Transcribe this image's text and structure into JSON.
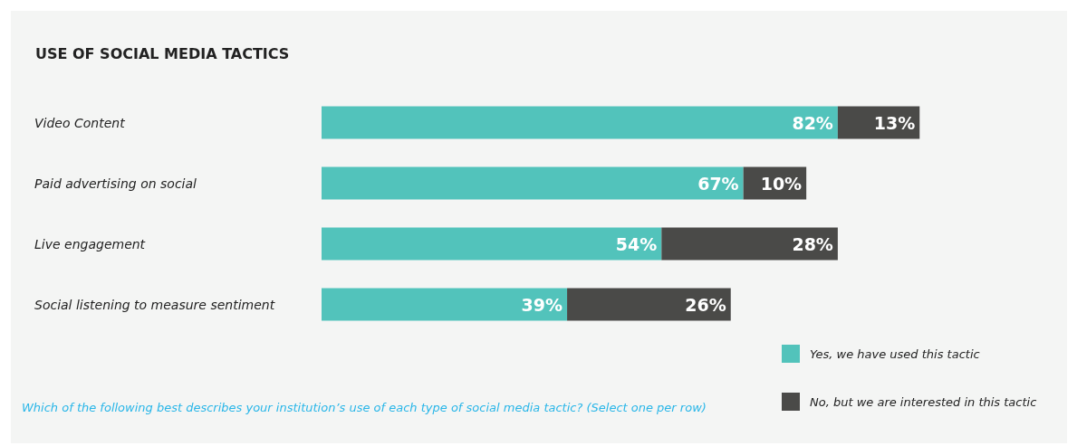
{
  "chart_data": {
    "type": "bar",
    "orientation": "horizontal",
    "stacked": true,
    "title": "USE OF SOCIAL MEDIA TACTICS",
    "categories": [
      "Video Content",
      "Paid advertising on social",
      "Live engagement",
      "Social listening to measure sentiment"
    ],
    "series": [
      {
        "name": "Yes, we have used this tactic",
        "color": "#52c3bb",
        "values": [
          82,
          67,
          54,
          39
        ],
        "value_labels": [
          "82%",
          "67%",
          "54%",
          "39%"
        ]
      },
      {
        "name": "No, but we are interested in this tactic",
        "color": "#4a4a48",
        "values": [
          13,
          10,
          28,
          26
        ],
        "value_labels": [
          "13%",
          "10%",
          "28%",
          "26%"
        ]
      }
    ],
    "legend": "bottom right",
    "annotations": [
      "Which of the following best describes your institution’s use of each type of social media tactic? (Select one per row)"
    ]
  }
}
